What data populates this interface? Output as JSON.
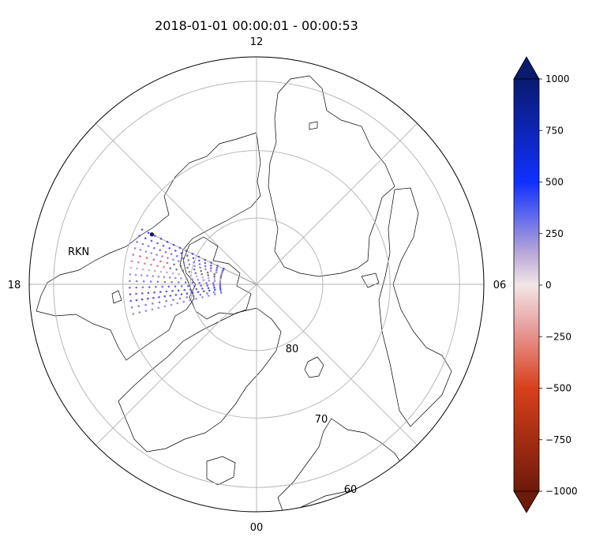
{
  "title": "2018-01-01 00:00:01 - 00:00:53",
  "chart_data": {
    "type": "scatter",
    "projection": "north polar stereographic (magnetic local time)",
    "title": "2018-01-01 00:00:01 - 00:00:53",
    "mlt_labels": {
      "top": "12",
      "left": "18",
      "right": "06",
      "bottom": "00"
    },
    "latitude_circles": [
      80,
      70,
      60
    ],
    "latitude_labels": [
      "80",
      "70",
      "60"
    ],
    "station": {
      "name": "RKN",
      "mlt": 16.3,
      "mlat": 72.6
    },
    "fov_edges_mlt": [
      16.3,
      18.9
    ],
    "colorbar": {
      "ticks": [
        1000,
        750,
        500,
        250,
        0,
        -250,
        -500,
        -750,
        -1000
      ],
      "tick_labels": [
        "1000",
        "750",
        "500",
        "250",
        "0",
        "−250",
        "−500",
        "−750",
        "−1000"
      ],
      "range": [
        -1000,
        1000
      ],
      "extend": "both",
      "colors": [
        "#0a1a6e",
        "#1030ff",
        "#c8b2d8",
        "#f2e6e6",
        "#d33a1a",
        "#6e1a0a"
      ]
    },
    "beams": [
      {
        "mlt": 16.3,
        "color": "#3a3ad8"
      },
      {
        "mlt": 16.5,
        "color": "#4a46dd"
      },
      {
        "mlt": 16.7,
        "color": "#6a5ae0"
      },
      {
        "mlt": 16.9,
        "color": "#9070d0"
      },
      {
        "mlt": 17.1,
        "color": "#d05858"
      },
      {
        "mlt": 17.3,
        "color": "#e07070"
      },
      {
        "mlt": 17.5,
        "color": "#b9a0d2"
      },
      {
        "mlt": 17.7,
        "color": "#8f7ad8"
      },
      {
        "mlt": 17.9,
        "color": "#6b63d9"
      },
      {
        "mlt": 18.1,
        "color": "#5b55e0"
      },
      {
        "mlt": 18.3,
        "color": "#4444e0"
      },
      {
        "mlt": 18.5,
        "color": "#3c3ce4"
      },
      {
        "mlt": 18.7,
        "color": "#6a6ad8"
      },
      {
        "mlt": 18.9,
        "color": "#8a7ad8"
      }
    ],
    "gate_mlat_range": [
      71.0,
      84.5
    ],
    "no_data_color": "#666666"
  }
}
